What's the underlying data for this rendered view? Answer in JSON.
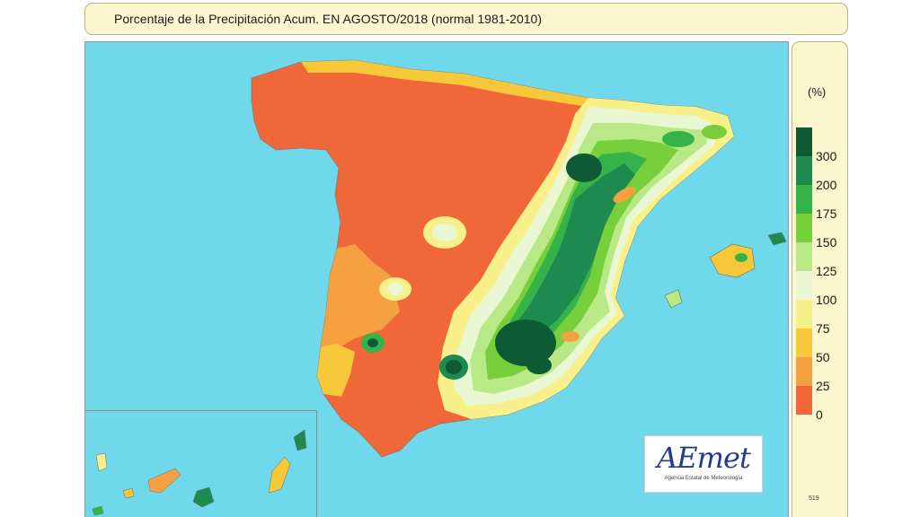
{
  "title": "Porcentaje de la Precipitación Acum. EN  AGOSTO/2018  (normal 1981-2010)",
  "legend": {
    "unit": "(%)",
    "ticks": [
      "300",
      "200",
      "175",
      "150",
      "125",
      "100",
      "75",
      "50",
      "25",
      "0"
    ],
    "classes": [
      {
        "label": "300+",
        "color": "#0e5a34"
      },
      {
        "label": "200-300",
        "color": "#1f8a4f"
      },
      {
        "label": "175-200",
        "color": "#35b24a"
      },
      {
        "label": "150-175",
        "color": "#78cf3c"
      },
      {
        "label": "125-150",
        "color": "#b8e986"
      },
      {
        "label": "100-125",
        "color": "#e9f7d2"
      },
      {
        "label": "75-100",
        "color": "#f8f08a"
      },
      {
        "label": "50-75",
        "color": "#f6c83a"
      },
      {
        "label": "25-50",
        "color": "#f5a142"
      },
      {
        "label": "0-25",
        "color": "#f0683a"
      }
    ],
    "code": "519"
  },
  "logo": {
    "text": "AEmet",
    "subtitle": "Agencia Estatal de Meteorología"
  },
  "colors": {
    "sea": "#6fd8ea",
    "panel": "#fcf7cf",
    "panel_border": "#b7b08a",
    "logo_blue": "#213d8f"
  }
}
